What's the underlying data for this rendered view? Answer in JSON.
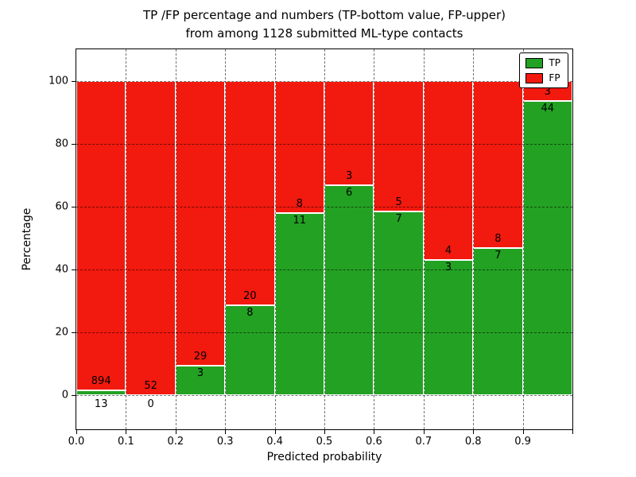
{
  "chart_data": {
    "type": "bar",
    "stacked": true,
    "title_lines": [
      "TP /FP percentage and numbers (TP-bottom value, FP-upper)",
      "from among 1128 submitted ML-type contacts"
    ],
    "xlabel": "Predicted probability",
    "ylabel": "Percentage",
    "total_contacts": 1128,
    "xlim": [
      0.0,
      1.0
    ],
    "ylim": [
      -11,
      110
    ],
    "bin_width": 0.1,
    "bins": [
      0.0,
      0.1,
      0.2,
      0.3,
      0.4,
      0.5,
      0.6,
      0.7,
      0.8,
      0.9
    ],
    "x_tick_labels": [
      "0.0",
      "0.1",
      "0.2",
      "0.3",
      "0.4",
      "0.5",
      "0.6",
      "0.7",
      "0.8",
      "0.9"
    ],
    "y_ticks": [
      0,
      20,
      40,
      60,
      80,
      100
    ],
    "grid": {
      "on": true,
      "linestyle": "dashed"
    },
    "legend_position": "upper right",
    "series": [
      {
        "name": "TP",
        "color": "#23a123",
        "counts": [
          13,
          0,
          3,
          8,
          11,
          6,
          7,
          3,
          7,
          44
        ]
      },
      {
        "name": "FP",
        "color": "#f2190e",
        "counts": [
          894,
          52,
          29,
          20,
          8,
          3,
          5,
          4,
          8,
          3
        ]
      }
    ],
    "tp_percent_by_bin": [
      1.4,
      0.0,
      9.4,
      28.6,
      57.9,
      66.7,
      58.3,
      42.9,
      46.7,
      93.6
    ]
  }
}
